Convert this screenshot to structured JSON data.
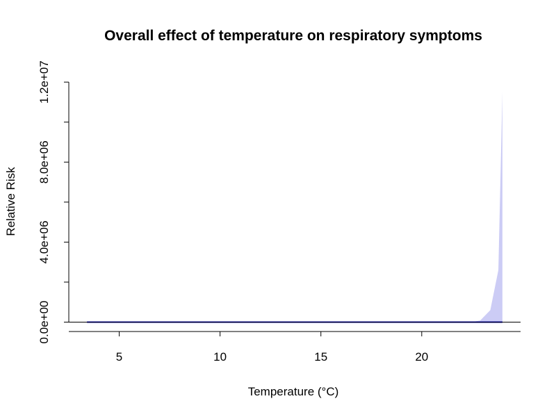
{
  "chart_data": {
    "type": "area",
    "title": "Overall effect of temperature on respiratory symptoms",
    "xlabel": "Temperature (°C)",
    "ylabel": "Relative Risk",
    "xlim": [
      2.5,
      24.9
    ],
    "ylim": [
      -470000,
      12700000
    ],
    "x_ticks": [
      5,
      10,
      15,
      20
    ],
    "x_tick_labels": [
      "5",
      "10",
      "15",
      "20"
    ],
    "y_ticks": [
      0,
      2000000,
      4000000,
      6000000,
      8000000,
      10000000,
      12000000
    ],
    "y_tick_labels": [
      "0.0e+00",
      "",
      "4.0e+06",
      "",
      "8.0e+06",
      "",
      "1.2e+07"
    ],
    "reference_line": {
      "y": 1,
      "color": "#000000"
    },
    "grid": false,
    "legend": "none",
    "series": [
      {
        "kind": "line",
        "color": "#0000cc",
        "x": [
          3.4,
          5,
          10,
          15,
          20,
          22.5,
          23,
          23.4,
          23.8,
          24.0
        ],
        "y": [
          1,
          1,
          1,
          1,
          1,
          1,
          1.1,
          1.3,
          1.6,
          1.8
        ]
      },
      {
        "kind": "confidence_band",
        "color": "#ccccf5",
        "x": [
          3.4,
          5,
          10,
          15,
          20,
          22.5,
          22.9,
          23.4,
          23.8,
          24.0
        ],
        "upper": [
          1,
          1,
          1,
          1,
          1,
          5000,
          80000,
          600000,
          2600000,
          11500000
        ],
        "lower": [
          1,
          1,
          1,
          1,
          1,
          1,
          1,
          1,
          1,
          1
        ]
      }
    ]
  }
}
